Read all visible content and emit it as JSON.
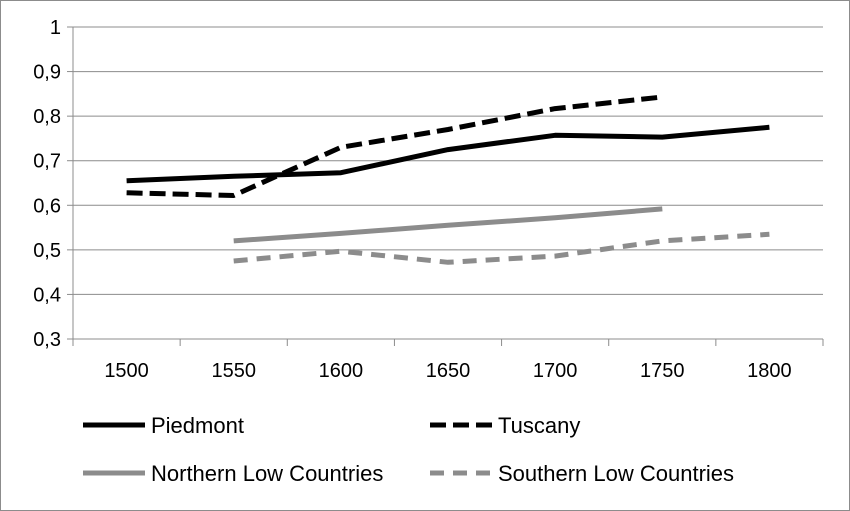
{
  "chart_data": {
    "type": "line",
    "title": "",
    "xlabel": "",
    "ylabel": "",
    "x": [
      1500,
      1550,
      1600,
      1650,
      1700,
      1750,
      1800
    ],
    "x_tick_labels": [
      "1500",
      "1550",
      "1600",
      "1650",
      "1700",
      "1750",
      "1800"
    ],
    "ylim": [
      0.3,
      1
    ],
    "y_ticks": [
      0.3,
      0.4,
      0.5,
      0.6,
      0.7,
      0.8,
      0.9,
      1
    ],
    "y_tick_labels": [
      "0,3",
      "0,4",
      "0,5",
      "0,6",
      "0,7",
      "0,8",
      "0,9",
      "1"
    ],
    "grid": "horizontal",
    "legend_placement": "bottom",
    "series": [
      {
        "name": "Piedmont",
        "color": "#000000",
        "dash": "solid",
        "values": [
          0.655,
          0.665,
          0.673,
          0.725,
          0.757,
          0.753,
          0.775
        ]
      },
      {
        "name": "Tuscany",
        "color": "#000000",
        "dash": "dashed",
        "values": [
          0.628,
          0.622,
          0.73,
          0.77,
          0.817,
          0.843,
          null
        ]
      },
      {
        "name": "Northern Low Countries",
        "color": "#8c8c8c",
        "dash": "solid",
        "values": [
          null,
          0.52,
          0.537,
          0.555,
          0.572,
          0.592,
          null
        ]
      },
      {
        "name": "Southern Low Countries",
        "color": "#8c8c8c",
        "dash": "dashed",
        "values": [
          null,
          0.475,
          0.497,
          0.472,
          0.486,
          0.52,
          0.535
        ]
      }
    ]
  }
}
